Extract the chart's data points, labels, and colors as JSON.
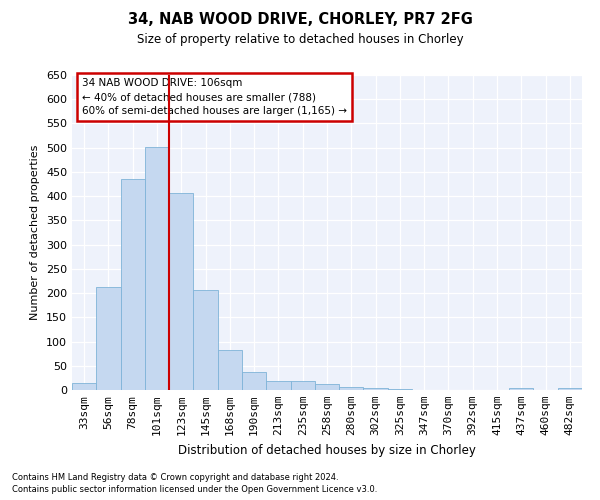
{
  "title1": "34, NAB WOOD DRIVE, CHORLEY, PR7 2FG",
  "title2": "Size of property relative to detached houses in Chorley",
  "xlabel": "Distribution of detached houses by size in Chorley",
  "ylabel": "Number of detached properties",
  "categories": [
    "33sqm",
    "56sqm",
    "78sqm",
    "101sqm",
    "123sqm",
    "145sqm",
    "168sqm",
    "190sqm",
    "213sqm",
    "235sqm",
    "258sqm",
    "280sqm",
    "302sqm",
    "325sqm",
    "347sqm",
    "370sqm",
    "392sqm",
    "415sqm",
    "437sqm",
    "460sqm",
    "482sqm"
  ],
  "values": [
    15,
    212,
    435,
    502,
    407,
    207,
    83,
    38,
    19,
    18,
    13,
    7,
    4,
    2,
    1,
    1,
    0,
    0,
    4,
    0,
    4
  ],
  "bar_color": "#c5d8f0",
  "bar_edge_color": "#7fb3d8",
  "bg_color": "#eef2fb",
  "grid_color": "#ffffff",
  "vline_color": "#cc0000",
  "vline_x_index": 3,
  "annotation_line1": "34 NAB WOOD DRIVE: 106sqm",
  "annotation_line2": "← 40% of detached houses are smaller (788)",
  "annotation_line3": "60% of semi-detached houses are larger (1,165) →",
  "annotation_box_color": "#cc0000",
  "footnote1": "Contains HM Land Registry data © Crown copyright and database right 2024.",
  "footnote2": "Contains public sector information licensed under the Open Government Licence v3.0.",
  "ylim": [
    0,
    650
  ],
  "yticks": [
    0,
    50,
    100,
    150,
    200,
    250,
    300,
    350,
    400,
    450,
    500,
    550,
    600,
    650
  ]
}
